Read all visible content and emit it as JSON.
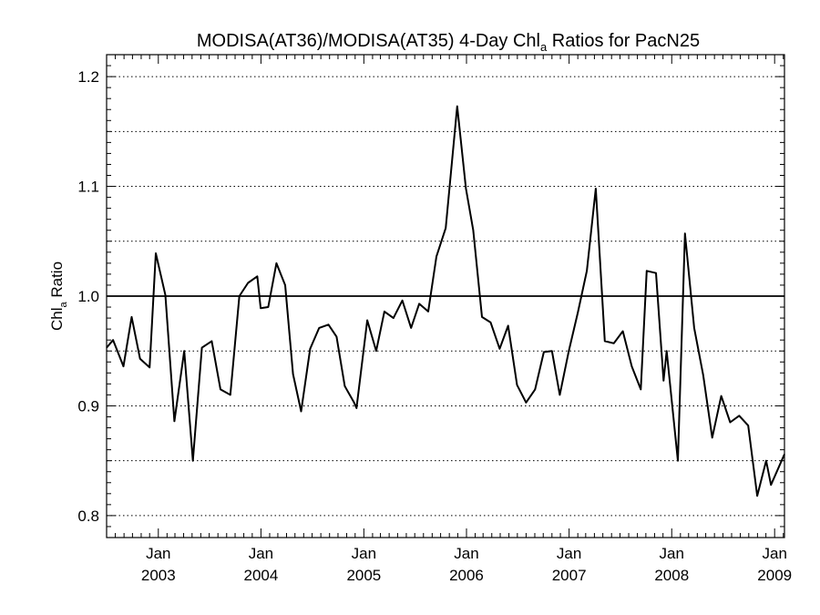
{
  "chart_data": {
    "type": "line",
    "title": {
      "prefix": "MODISA(AT36)/MODISA(AT35) 4-Day Chl",
      "subscript": "a",
      "suffix": " Ratios for PacN25"
    },
    "ylabel": {
      "main": "Chl",
      "subscript": "a",
      "suffix": " Ratio"
    },
    "xlabel": "",
    "xlim": [
      "2002-07-01",
      "2009-02-05"
    ],
    "ylim": [
      0.78,
      1.22
    ],
    "y_ticks": [
      0.8,
      0.9,
      1.0,
      1.1,
      1.2
    ],
    "y_tick_labels": [
      "0.8",
      "0.9",
      "1.0",
      "1.1",
      "1.2"
    ],
    "y_gridlines": [
      0.8,
      0.85,
      0.9,
      0.95,
      1.05,
      1.1,
      1.15,
      1.2
    ],
    "grid_style": "dotted",
    "reference_line": 1.0,
    "x_ticks": [
      {
        "date": "2003-01-01",
        "month": "Jan",
        "year": "2003"
      },
      {
        "date": "2004-01-01",
        "month": "Jan",
        "year": "2004"
      },
      {
        "date": "2005-01-01",
        "month": "Jan",
        "year": "2005"
      },
      {
        "date": "2006-01-01",
        "month": "Jan",
        "year": "2006"
      },
      {
        "date": "2007-01-01",
        "month": "Jan",
        "year": "2007"
      },
      {
        "date": "2008-01-01",
        "month": "Jan",
        "year": "2008"
      },
      {
        "date": "2009-01-01",
        "month": "Jan",
        "year": "2009"
      }
    ],
    "series": [
      {
        "color": "#000000",
        "points": [
          [
            "2002-07-01",
            0.953
          ],
          [
            "2002-07-24",
            0.96
          ],
          [
            "2002-08-30",
            0.936
          ],
          [
            "2002-09-28",
            0.981
          ],
          [
            "2002-10-28",
            0.943
          ],
          [
            "2002-12-01",
            0.935
          ],
          [
            "2002-12-23",
            1.039
          ],
          [
            "2003-01-26",
            1.001
          ],
          [
            "2003-02-27",
            0.886
          ],
          [
            "2003-04-03",
            0.95
          ],
          [
            "2003-05-04",
            0.85
          ],
          [
            "2003-06-05",
            0.953
          ],
          [
            "2003-07-10",
            0.959
          ],
          [
            "2003-08-10",
            0.915
          ],
          [
            "2003-09-14",
            0.91
          ],
          [
            "2003-10-16",
            1.0
          ],
          [
            "2003-11-16",
            1.012
          ],
          [
            "2003-12-19",
            1.018
          ],
          [
            "2003-12-31",
            0.989
          ],
          [
            "2004-01-27",
            0.99
          ],
          [
            "2004-02-25",
            1.03
          ],
          [
            "2004-03-27",
            1.01
          ],
          [
            "2004-04-24",
            0.929
          ],
          [
            "2004-05-23",
            0.895
          ],
          [
            "2004-06-24",
            0.952
          ],
          [
            "2004-07-26",
            0.971
          ],
          [
            "2004-08-28",
            0.974
          ],
          [
            "2004-09-26",
            0.963
          ],
          [
            "2004-10-25",
            0.918
          ],
          [
            "2004-11-27",
            0.903
          ],
          [
            "2004-12-06",
            0.898
          ],
          [
            "2005-01-13",
            0.978
          ],
          [
            "2005-02-14",
            0.95
          ],
          [
            "2005-03-15",
            0.986
          ],
          [
            "2005-04-16",
            0.98
          ],
          [
            "2005-05-18",
            0.996
          ],
          [
            "2005-06-18",
            0.971
          ],
          [
            "2005-07-17",
            0.993
          ],
          [
            "2005-08-18",
            0.986
          ],
          [
            "2005-09-16",
            1.036
          ],
          [
            "2005-10-19",
            1.062
          ],
          [
            "2005-11-29",
            1.173
          ],
          [
            "2005-12-30",
            1.098
          ],
          [
            "2006-01-25",
            1.06
          ],
          [
            "2006-02-25",
            0.981
          ],
          [
            "2006-03-28",
            0.976
          ],
          [
            "2006-04-29",
            0.952
          ],
          [
            "2006-05-29",
            0.973
          ],
          [
            "2006-06-30",
            0.919
          ],
          [
            "2006-08-01",
            0.903
          ],
          [
            "2006-09-02",
            0.915
          ],
          [
            "2006-10-03",
            0.949
          ],
          [
            "2006-11-01",
            0.95
          ],
          [
            "2006-11-29",
            0.91
          ],
          [
            "2006-12-31",
            0.95
          ],
          [
            "2007-02-01",
            0.985
          ],
          [
            "2007-03-05",
            1.023
          ],
          [
            "2007-04-06",
            1.098
          ],
          [
            "2007-05-08",
            0.959
          ],
          [
            "2007-06-09",
            0.957
          ],
          [
            "2007-07-11",
            0.968
          ],
          [
            "2007-08-12",
            0.936
          ],
          [
            "2007-09-13",
            0.915
          ],
          [
            "2007-10-04",
            1.023
          ],
          [
            "2007-11-06",
            1.021
          ],
          [
            "2007-12-03",
            0.923
          ],
          [
            "2007-12-14",
            0.95
          ],
          [
            "2008-01-23",
            0.85
          ],
          [
            "2008-02-17",
            1.057
          ],
          [
            "2008-03-21",
            0.971
          ],
          [
            "2008-04-22",
            0.928
          ],
          [
            "2008-05-24",
            0.871
          ],
          [
            "2008-06-25",
            0.909
          ],
          [
            "2008-07-27",
            0.885
          ],
          [
            "2008-08-28",
            0.891
          ],
          [
            "2008-09-29",
            0.882
          ],
          [
            "2008-10-31",
            0.818
          ],
          [
            "2008-12-02",
            0.85
          ],
          [
            "2008-12-19",
            0.828
          ],
          [
            "2009-02-05",
            0.856
          ]
        ]
      }
    ]
  }
}
